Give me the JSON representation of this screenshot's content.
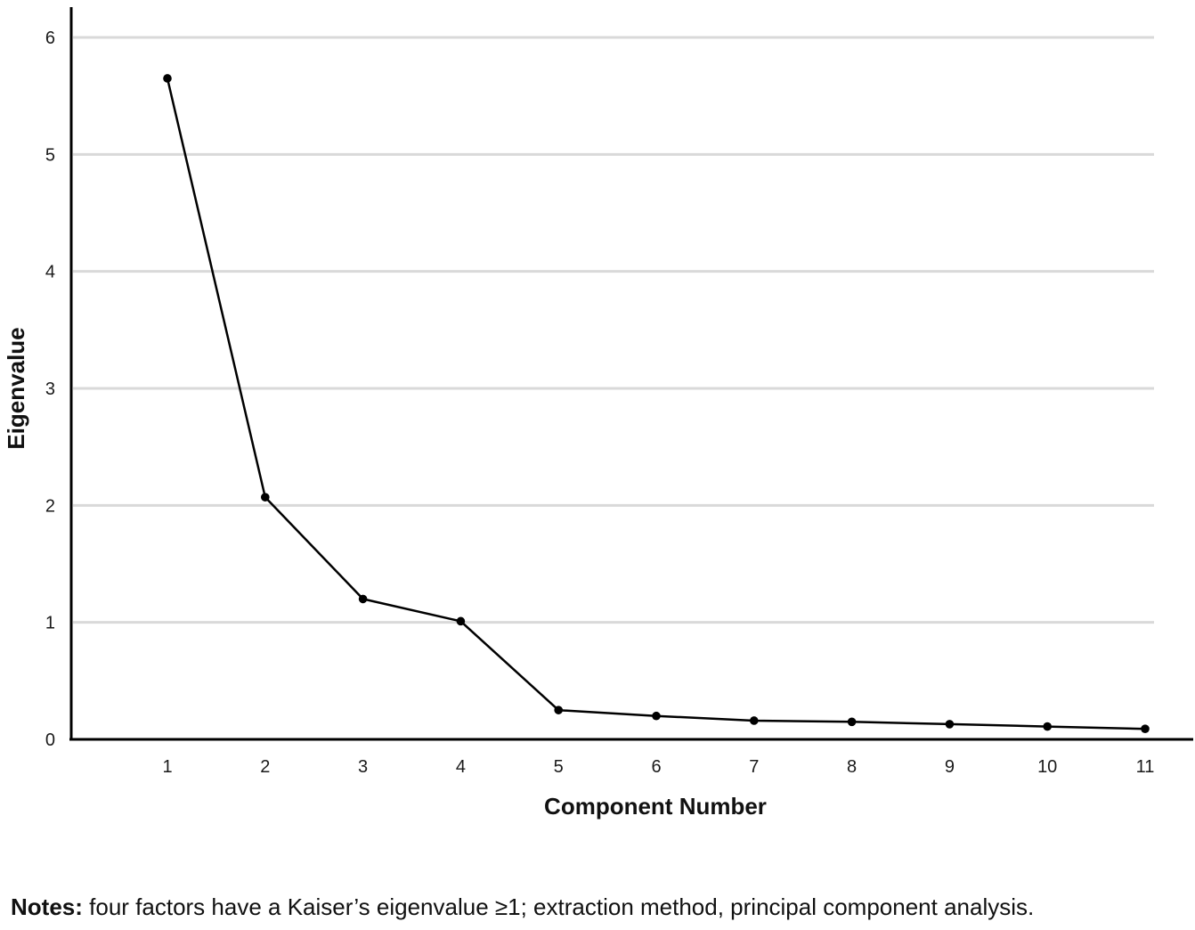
{
  "chart_data": {
    "type": "line",
    "title": "",
    "xlabel": "Component Number",
    "ylabel": "Eigenvalue",
    "x": [
      1,
      2,
      3,
      4,
      5,
      6,
      7,
      8,
      9,
      10,
      11
    ],
    "series": [
      {
        "values": [
          5.65,
          2.07,
          1.2,
          1.01,
          0.25,
          0.2,
          0.16,
          0.15,
          0.13,
          0.11,
          0.09
        ]
      }
    ],
    "x_ticks": [
      "1",
      "2",
      "3",
      "4",
      "5",
      "6",
      "7",
      "8",
      "9",
      "10",
      "11"
    ],
    "y_ticks": [
      "0",
      "1",
      "2",
      "3",
      "4",
      "5",
      "6"
    ],
    "ylim": [
      0,
      6
    ],
    "grid": "horizontal",
    "legend": "none",
    "colors": {
      "line": "#000000",
      "grid": "#d9d9d9",
      "axis": "#000000"
    }
  },
  "notes": {
    "label": "Notes:",
    "text": " four factors have a Kaiser’s eigenvalue ≥1; extraction method, principal component analysis."
  }
}
